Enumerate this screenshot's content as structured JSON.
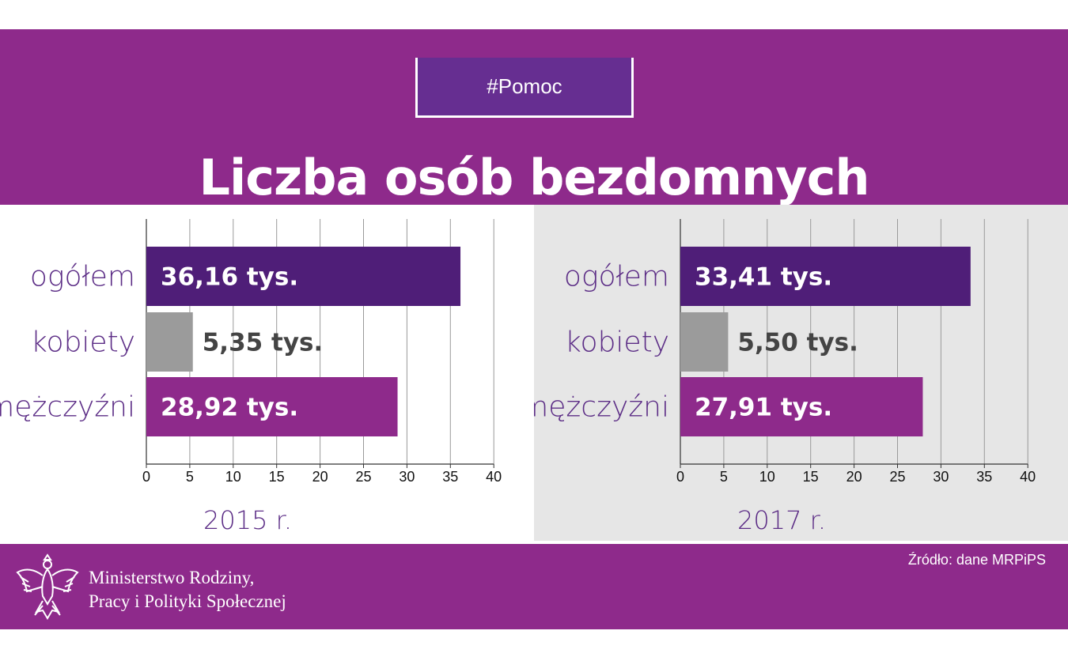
{
  "header": {
    "tag": "#Pomoc",
    "title": "Liczba osób bezdomnych"
  },
  "chart_data": [
    {
      "type": "bar",
      "orientation": "horizontal",
      "year_label": "2015 r.",
      "categories": [
        "ogółem",
        "kobiety",
        "mężczyźni"
      ],
      "values": [
        36.16,
        5.35,
        28.92
      ],
      "data_labels": [
        "36,16 tys.",
        "5,35 tys.",
        "28,92 tys."
      ],
      "xlim": [
        0,
        40
      ],
      "xticks": [
        0,
        5,
        10,
        15,
        20,
        25,
        30,
        35,
        40
      ],
      "grid": true
    },
    {
      "type": "bar",
      "orientation": "horizontal",
      "year_label": "2017 r.",
      "categories": [
        "ogółem",
        "kobiety",
        "mężczyźni"
      ],
      "values": [
        33.41,
        5.5,
        27.91
      ],
      "data_labels": [
        "33,41 tys.",
        "5,50 tys.",
        "27,91 tys."
      ],
      "xlim": [
        0,
        40
      ],
      "xticks": [
        0,
        5,
        10,
        15,
        20,
        25,
        30,
        35,
        40
      ],
      "grid": true
    }
  ],
  "colors": {
    "header_bg": "#8e2a8b",
    "tag_bg": "#662e91",
    "bar_total": "#4f1e78",
    "bar_women": "#9b9b9b",
    "bar_men": "#8e2a8b",
    "category_text": "#5c2d86",
    "women_label": "#444444"
  },
  "footer": {
    "ministry_line1": "Ministerstwo Rodziny,",
    "ministry_line2": "Pracy i Polityki Społecznej",
    "source": "Źródło: dane MRPiPS",
    "emblem_icon": "polish-eagle-icon"
  }
}
